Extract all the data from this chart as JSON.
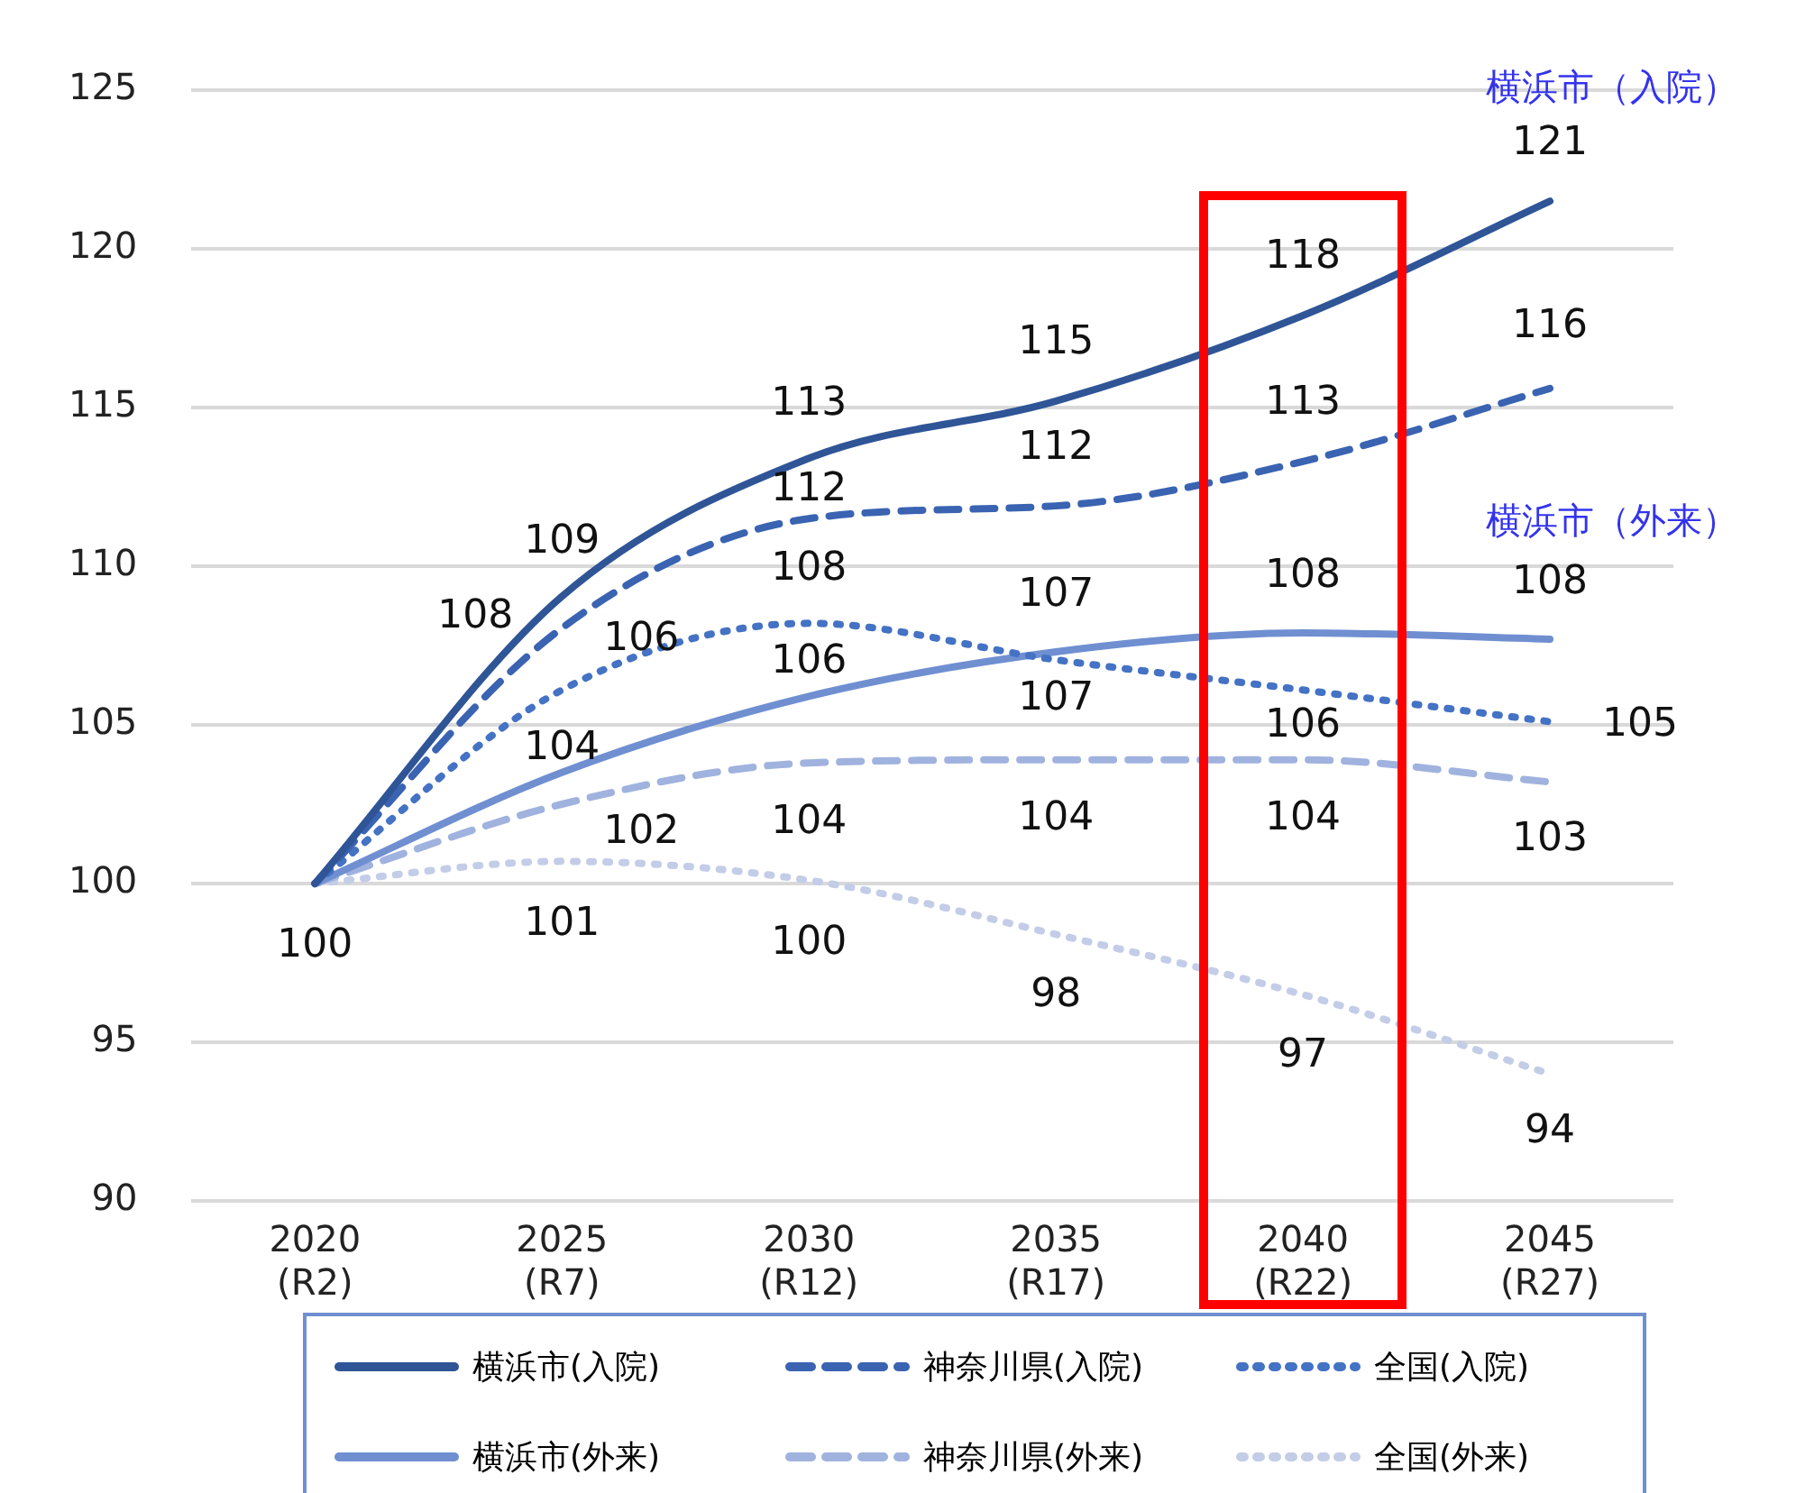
{
  "chart_data": {
    "type": "line",
    "categories": [
      "2020\n(R2)",
      "2025\n(R7)",
      "2030\n(R12)",
      "2035\n(R17)",
      "2040\n(R22)",
      "2045\n(R27)"
    ],
    "series": [
      {
        "name": "横浜市(入院)",
        "color": "#2f5597",
        "line_style": "solid",
        "values": [
          100,
          109.05,
          113.4,
          115.2,
          117.9,
          121.5
        ],
        "value_labels": [
          null,
          "109",
          "113",
          "115",
          "118",
          "121"
        ]
      },
      {
        "name": "神奈川県(入院)",
        "color": "#3a63b2",
        "line_style": "dashed",
        "values": [
          100,
          108.05,
          111.5,
          111.9,
          113.3,
          115.6
        ],
        "value_labels": [
          null,
          "108",
          "112",
          "112",
          "113",
          "116"
        ]
      },
      {
        "name": "全国(入院)",
        "color": "#4472c4",
        "line_style": "dotted",
        "values": [
          100,
          106.1,
          108.2,
          107.05,
          106.1,
          105.1
        ],
        "value_labels": [
          null,
          "106",
          "108",
          "107",
          "106",
          "105"
        ]
      },
      {
        "name": "横浜市(外来)",
        "color": "#6f8fd1",
        "line_style": "solid",
        "values": [
          100,
          103.5,
          105.9,
          107.3,
          107.9,
          107.7
        ],
        "value_labels": [
          null,
          "104",
          "106",
          "107",
          "108",
          "108"
        ]
      },
      {
        "name": "神奈川県(外来)",
        "color": "#a0b2de",
        "line_style": "dashed",
        "values": [
          100,
          102.5,
          103.8,
          103.9,
          103.9,
          103.2
        ],
        "value_labels": [
          null,
          "102",
          "104",
          "104",
          "104",
          "103"
        ]
      },
      {
        "name": "全国(外来)",
        "color": "#c3cde8",
        "line_style": "dotted",
        "values": [
          100,
          100.7,
          100.1,
          98.4,
          96.5,
          94.0
        ],
        "value_labels": [
          "100",
          "101",
          "100",
          "98",
          "97",
          "94"
        ]
      }
    ],
    "ylim": [
      90,
      125
    ],
    "yticks": [
      90,
      95,
      100,
      105,
      110,
      115,
      120,
      125
    ],
    "grid": "y",
    "legend": "bottom",
    "marker": "none",
    "annotations": [
      "横浜市（入院）",
      "横浜市（外来）"
    ]
  }
}
